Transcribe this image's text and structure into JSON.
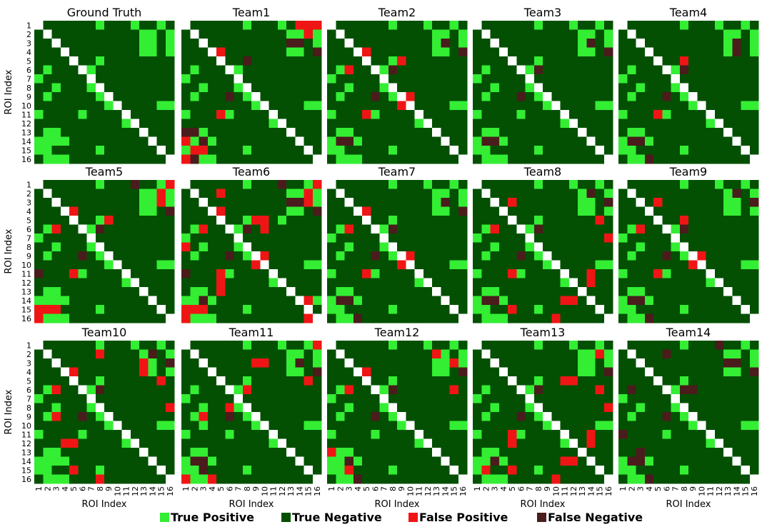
{
  "colors": {
    "true_positive": "#33ee33",
    "true_negative": "#035003",
    "false_positive": "#f01515",
    "false_negative": "#4a1c1c",
    "diagonal": "#ffffff"
  },
  "chart_data": {
    "type": "heatmap",
    "size": 16,
    "tick_labels": [
      "1",
      "2",
      "3",
      "4",
      "5",
      "6",
      "7",
      "8",
      "9",
      "10",
      "11",
      "12",
      "13",
      "14",
      "15",
      "16"
    ],
    "xlabel": "ROI Index",
    "ylabel": "ROI Index",
    "cell_legend": {
      "0": "True Negative",
      "1": "True Positive",
      "2": "False Positive",
      "3": "False Negative",
      "D": "diagonal"
    },
    "legend": [
      {
        "key": "true_positive",
        "label": "True Positive"
      },
      {
        "key": "true_negative",
        "label": "True Negative"
      },
      {
        "key": "false_positive",
        "label": "False Positive"
      },
      {
        "key": "false_negative",
        "label": "False Negative"
      }
    ],
    "panels": [
      {
        "title": "Ground Truth",
        "rows": [
          "D000000100010010",
          "0D00000000001101",
          "00D0000000001101",
          "000D000000001101",
          "0000D00100000000",
          "01000D1000000000",
          "100000D000000000",
          "0010001D00000000",
          "01000001D0000000",
          "000000001D000011",
          "1000010000D00000",
          "00000000001D0000",
          "011000000000D000",
          "1111000000000D00",
          "11000001000000D0",
          "011100000000000D"
        ]
      },
      {
        "title": "Team1",
        "rows": [
          "D000000100010222",
          "0D00000000001121",
          "00D0000000003301",
          "000D200000001103",
          "0000D00300000000",
          "01000D1000000000",
          "100000D000000000",
          "0010001D00000000",
          "01000301D0000000",
          "000000001D000011",
          "1000210000D00000",
          "00000000001D0000",
          "331000000000D000",
          "2131000000000D00",
          "12200001000000D0",
          "231100000000000D"
        ]
      },
      {
        "title": "Team2",
        "rows": [
          "D000000100010010",
          "0D00000000001101",
          "00D0000000001301",
          "000D200000001103",
          "0000D00120000000",
          "01200D1300000000",
          "100000D000000000",
          "0010001D00000000",
          "01000301D2000000",
          "000000002D000011",
          "1000210000D00000",
          "00000000001D0000",
          "011000000000D000",
          "1331000000000D00",
          "11000001000000D0",
          "011100000000000D"
        ]
      },
      {
        "title": "Team3",
        "rows": [
          "D000000100010010",
          "0D00000000001101",
          "00D0000000001301",
          "000D000000001103",
          "0000D00100000000",
          "01000D1300000000",
          "100000D000000000",
          "0010001D00000000",
          "01000301D0000000",
          "000000001D000011",
          "1000010000D00000",
          "00000000001D0000",
          "011000000000D000",
          "1331000000000D00",
          "11000001000000D0",
          "011100000000000D"
        ]
      },
      {
        "title": "Team4",
        "rows": [
          "D000000100010010",
          "0D00000000001101",
          "00D0000000001301",
          "000D000000001301",
          "0000D00200000000",
          "01000D1300000000",
          "100000D000000000",
          "0010001D00000000",
          "01000301D0000000",
          "000000001D000011",
          "1000210000D00000",
          "00000000001D0000",
          "011000000000D000",
          "1331000000000D00",
          "11000001000000D0",
          "011300000000000D"
        ]
      },
      {
        "title": "Team5",
        "rows": [
          "D000000100030012",
          "0D00000000001121",
          "00D0000000001121",
          "000D200000001103",
          "0000D00120000000",
          "01200D1300000000",
          "100000D000000000",
          "0010001D00000000",
          "01000301D0000000",
          "000000001D000011",
          "3000210000D00000",
          "00000000001D0000",
          "011000000000D000",
          "1111000000000D00",
          "22200001000000D0",
          "211100000000000D"
        ]
      },
      {
        "title": "Team6",
        "rows": [
          "D000000100030012",
          "0D00200000001121",
          "00D0000000003321",
          "000D200000001103",
          "0000D00122010000",
          "01200D1302000000",
          "100000D000000000",
          "2010001D00000000",
          "01000301D2000000",
          "000000002D000011",
          "3000210000D00000",
          "00002000001D0000",
          "011020000000D000",
          "1131000000000D21",
          "22200001000000D0",
          "211100000000002D"
        ]
      },
      {
        "title": "Team7",
        "rows": [
          "D000000100010010",
          "0D00000000001101",
          "00D0000000001301",
          "000D200000001103",
          "0000D00100000000",
          "01200D1300000000",
          "100000D000000000",
          "0010001D00000000",
          "01000301D2000000",
          "000000002D000011",
          "1000210000D00000",
          "00000000001D0000",
          "011000000000D000",
          "1331000000000D00",
          "11000001000000D0",
          "011300000000000D"
        ]
      },
      {
        "title": "Team8",
        "rows": [
          "D000000100010010",
          "0D00000000001301",
          "00D0200000001103",
          "000D000000001101",
          "0000D00100000020",
          "01200D1300000000",
          "100000D000000002",
          "0010001D00000000",
          "01000301D0000000",
          "000000001D000011",
          "1000210000D00200",
          "00000000001D0200",
          "011000000000D000",
          "1331000000220D00",
          "11002001000000D0",
          "011100000200000D"
        ]
      },
      {
        "title": "Team9",
        "rows": [
          "D000000100010010",
          "0D00000000001301",
          "00D0200000001103",
          "000D000000001101",
          "0000D00200000000",
          "01200D1300000000",
          "100000D000000000",
          "0010001D00000000",
          "01000301D2000000",
          "000000002D000011",
          "1000210000D00000",
          "00000000001D0000",
          "011000000000D000",
          "1331000000000D00",
          "11000001000000D0",
          "011300000000000D"
        ]
      },
      {
        "title": "Team10",
        "rows": [
          "D000000100010010",
          "0D00000200001301",
          "00D0000000002103",
          "000D200000002101",
          "0000D00100000020",
          "01200D1300000000",
          "100000D000000000",
          "0010001D00000002",
          "01200301D0000000",
          "000000001D000011",
          "1000010000D00000",
          "00022000001D0000",
          "011000000000D000",
          "1111000000000D00",
          "11002001000000D0",
          "011100020000000D"
        ]
      },
      {
        "title": "Team11",
        "rows": [
          "D000000100010012",
          "0D00000000001101",
          "00D0000022001301",
          "000D000000001103",
          "0000D00100000020",
          "01000D1200000000",
          "100000D000000000",
          "0010021D00000000",
          "01200301D0000000",
          "001000001D000011",
          "1000010000D00000",
          "00000000001D0000",
          "011000000000D000",
          "1331000000000D00",
          "11300001000000D0",
          "211200000000000D"
        ]
      },
      {
        "title": "Team12",
        "rows": [
          "D000000100010010",
          "0D00000000002101",
          "00D0000000001121",
          "000D200000001103",
          "0000D00100000000",
          "01200D1300000020",
          "100000D000000000",
          "0010001D00000000",
          "01000301D0000000",
          "000000001D000011",
          "1000010000D00000",
          "00000000001D0000",
          "211000000000D000",
          "1131000000000D00",
          "11200001000000D0",
          "011300000000000D"
        ]
      },
      {
        "title": "Team13",
        "rows": [
          "D000000100010010",
          "0D00000000001121",
          "00D0000000001101",
          "000D000000001103",
          "0000D00100220000",
          "01000D1300000020",
          "100000D000000000",
          "0010001D00000002",
          "01000301D0000000",
          "000000001D000011",
          "1000210000D00200",
          "00002000001D0200",
          "011000000000D000",
          "1131000000220D00",
          "12002001000000D0",
          "011100000200000D"
        ]
      },
      {
        "title": "Team14",
        "rows": [
          "D000000100030010",
          "0D00030000001101",
          "00D0000000003301",
          "000D000000001103",
          "0000D00100000000",
          "03000D1330000000",
          "100000D000000000",
          "0010001D00000000",
          "01000301D0000000",
          "000000001D000011",
          "3000010000D00000",
          "00000000001D0000",
          "003000000000D000",
          "1331000000000D00",
          "11000001000000D0",
          "011300000000000D"
        ]
      }
    ]
  }
}
